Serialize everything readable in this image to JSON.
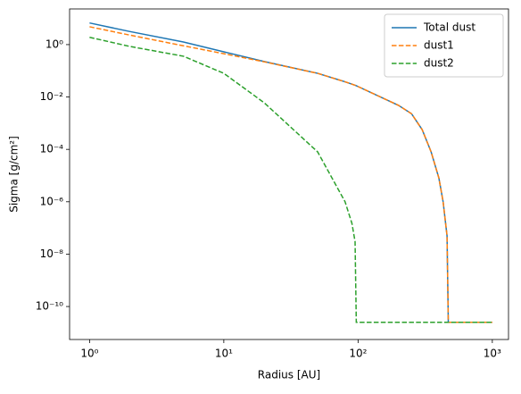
{
  "chart_data": {
    "type": "line",
    "xlabel": "Radius [AU]",
    "ylabel": "Sigma [g/cm²]",
    "xscale": "log",
    "yscale": "log",
    "legend": "upper right",
    "x": [
      1,
      2,
      5,
      10,
      20,
      50,
      80,
      90,
      95,
      97,
      100,
      200,
      250,
      300,
      350,
      400,
      430,
      460,
      470,
      1000
    ],
    "series": [
      {
        "name": "Total dust",
        "color": "#1f77b4",
        "dashed": false,
        "values": [
          6.7,
          3.15,
          1.26,
          0.53,
          0.226,
          0.08,
          0.038,
          0.031,
          0.028,
          0.027,
          0.025,
          0.0048,
          0.0023,
          0.00057,
          8e-05,
          8e-06,
          1e-06,
          5e-08,
          2.5e-11,
          2.5e-11
        ]
      },
      {
        "name": "dust1",
        "color": "#ff7f0e",
        "dashed": true,
        "values": [
          4.8,
          2.3,
          0.9,
          0.45,
          0.22,
          0.08,
          0.038,
          0.031,
          0.028,
          0.027,
          0.025,
          0.0048,
          0.0023,
          0.00057,
          8e-05,
          8e-06,
          1e-06,
          5e-08,
          2.5e-11,
          2.5e-11
        ]
      },
      {
        "name": "dust2",
        "color": "#2ca02c",
        "dashed": true,
        "values": [
          1.9,
          0.85,
          0.36,
          0.08,
          0.006,
          8e-05,
          1e-06,
          1.5e-07,
          3e-08,
          2.5e-11,
          2.5e-11,
          2.5e-11,
          2.5e-11,
          2.5e-11,
          2.5e-11,
          2.5e-11,
          2.5e-11,
          2.5e-11,
          2.5e-11,
          2.5e-11
        ]
      }
    ],
    "xlim": [
      0.71,
      1320
    ],
    "ylim": [
      5.5e-12,
      23
    ],
    "xticks": [
      {
        "value": 1,
        "label": "10⁰"
      },
      {
        "value": 10,
        "label": "10¹"
      },
      {
        "value": 100,
        "label": "10²"
      },
      {
        "value": 1000,
        "label": "10³"
      }
    ],
    "yticks": [
      {
        "value": 1,
        "label": "10⁰"
      },
      {
        "value": 0.01,
        "label": "10⁻²"
      },
      {
        "value": 0.0001,
        "label": "10⁻⁴"
      },
      {
        "value": 1e-06,
        "label": "10⁻⁶"
      },
      {
        "value": 1e-08,
        "label": "10⁻⁸"
      },
      {
        "value": 1e-10,
        "label": "10⁻¹⁰"
      }
    ]
  }
}
